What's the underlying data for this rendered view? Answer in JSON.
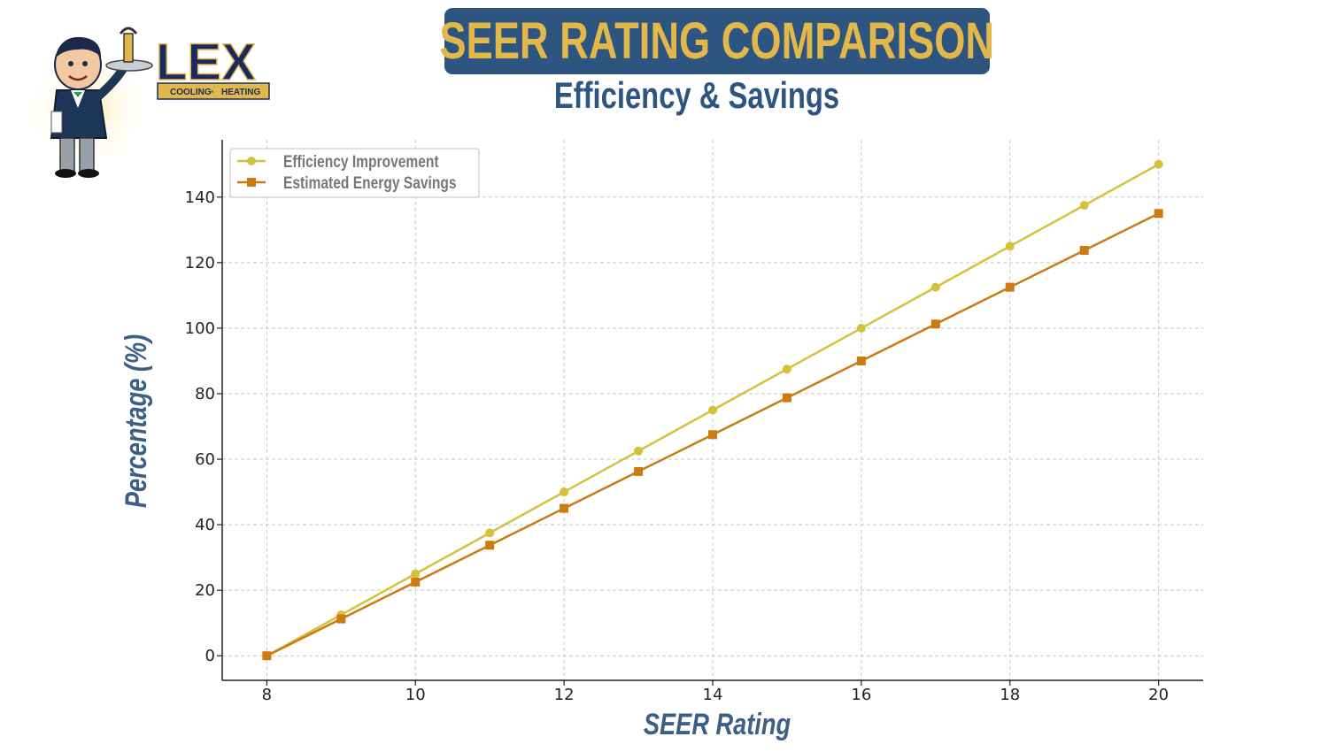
{
  "header": {
    "title": "SEER RATING COMPARISON",
    "subtitle": "Efficiency & Savings"
  },
  "logo": {
    "brand": "LEX",
    "tagline_left": "COOLING",
    "tagline_sep": "•",
    "tagline_right": "HEATING"
  },
  "colors": {
    "banner": "#2e5580",
    "banner_text": "#e2b84b",
    "series_efficiency": "#d4c23c",
    "series_savings": "#cc7a12"
  },
  "chart_data": {
    "type": "line",
    "x": [
      8,
      9,
      10,
      11,
      12,
      13,
      14,
      15,
      16,
      17,
      18,
      19,
      20
    ],
    "series": [
      {
        "name": "Efficiency Improvement",
        "marker": "circle",
        "values": [
          0,
          12.5,
          25,
          37.5,
          50,
          62.5,
          75,
          87.5,
          100,
          112.5,
          125,
          137.5,
          150
        ]
      },
      {
        "name": "Estimated Energy Savings",
        "marker": "square",
        "values": [
          0,
          11.25,
          22.5,
          33.75,
          45,
          56.25,
          67.5,
          78.75,
          90,
          101.25,
          112.5,
          123.75,
          135
        ]
      }
    ],
    "xlabel": "SEER Rating",
    "ylabel": "Percentage (%)",
    "xlim": [
      7.4,
      20.6
    ],
    "ylim": [
      -7.5,
      157.5
    ],
    "xticks": [
      8,
      10,
      12,
      14,
      16,
      18,
      20
    ],
    "yticks": [
      0,
      20,
      40,
      60,
      80,
      100,
      120,
      140
    ],
    "grid": true,
    "legend_position": "top-left"
  }
}
